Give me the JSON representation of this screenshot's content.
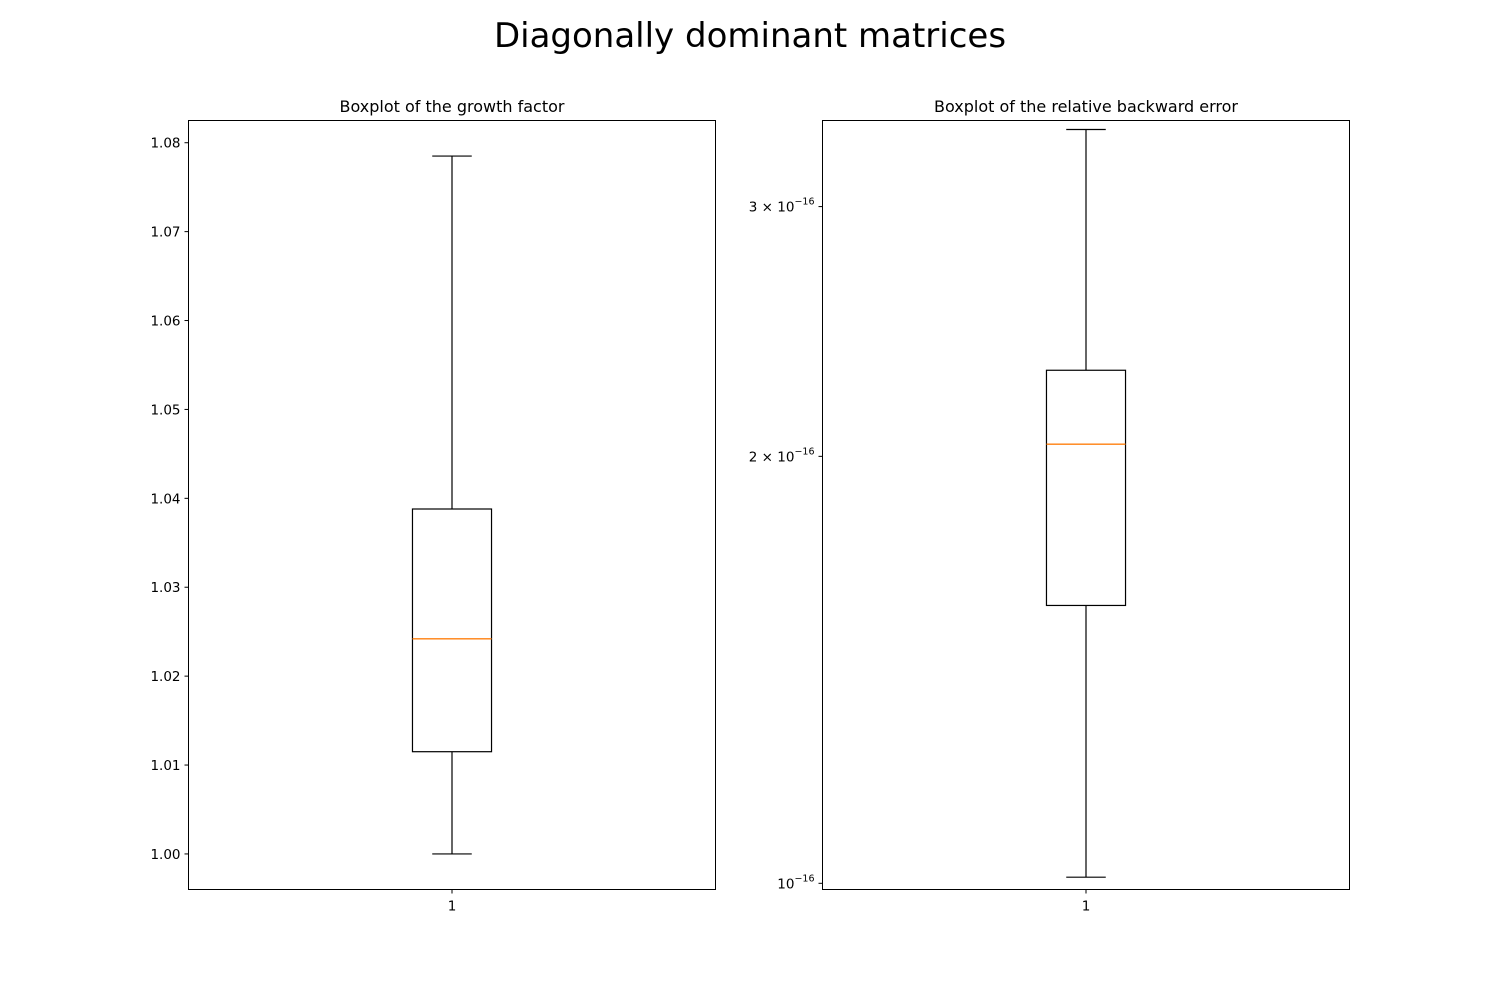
{
  "figure": {
    "title": "Diagonally dominant matrices"
  },
  "chart_data": [
    {
      "type": "boxplot",
      "title": "Boxplot of the growth factor",
      "xlabel": "",
      "ylabel": "",
      "categories": [
        "1"
      ],
      "yscale": "linear",
      "ylim": [
        0.996,
        1.0825
      ],
      "yticks": [
        1.0,
        1.01,
        1.02,
        1.03,
        1.04,
        1.05,
        1.06,
        1.07,
        1.08
      ],
      "ytick_labels": [
        "1.00",
        "1.01",
        "1.02",
        "1.03",
        "1.04",
        "1.05",
        "1.06",
        "1.07",
        "1.08"
      ],
      "box": {
        "whisker_low": 1.0,
        "q1": 1.0115,
        "median": 1.0242,
        "q3": 1.0388,
        "whisker_high": 1.0785
      },
      "colors": {
        "box": "#000000",
        "median": "#ff7f0e"
      },
      "grid": false
    },
    {
      "type": "boxplot",
      "title": "Boxplot of the relative backward error",
      "xlabel": "",
      "ylabel": "",
      "categories": [
        "1"
      ],
      "yscale": "log",
      "ylim": [
        9.9e-17,
        3.45e-16
      ],
      "yticks": [
        1e-16,
        2e-16,
        3e-16
      ],
      "ytick_labels": [
        {
          "mantissa": "",
          "base": "10",
          "exp": "−16"
        },
        {
          "mantissa": "2 × ",
          "base": "10",
          "exp": "−16"
        },
        {
          "mantissa": "3 × ",
          "base": "10",
          "exp": "−16"
        }
      ],
      "box": {
        "whisker_low": 1.01e-16,
        "q1": 1.57e-16,
        "median": 2.04e-16,
        "q3": 2.3e-16,
        "whisker_high": 3.4e-16
      },
      "colors": {
        "box": "#000000",
        "median": "#ff7f0e"
      },
      "grid": false
    }
  ]
}
